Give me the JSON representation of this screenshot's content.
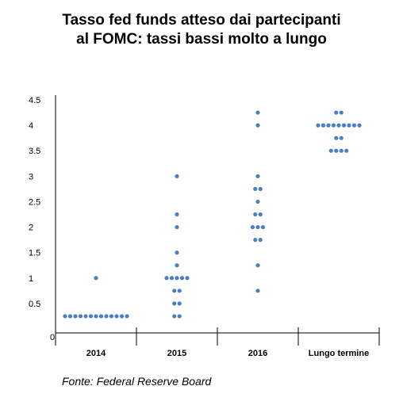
{
  "chart_data": {
    "type": "scatter",
    "title_line1": "Tasso fed funds atteso dai partecipanti",
    "title_line2": "al FOMC: tassi bassi molto a lungo",
    "source": "Fonte: Federal Reserve Board",
    "categories": [
      "2014",
      "2015",
      "2016",
      "Lungo termine"
    ],
    "y_ticks": [
      "0",
      "0.5",
      "1",
      "1.5",
      "2",
      "2.5",
      "3",
      "3.5",
      "4",
      "4.5"
    ],
    "ylim": [
      0,
      4.5
    ],
    "grid": false,
    "dot_color": "#4a7fc6",
    "series": [
      {
        "category": "2014",
        "points": [
          {
            "y": 0.25,
            "count": 13
          },
          {
            "y": 1.0,
            "count": 1
          }
        ]
      },
      {
        "category": "2015",
        "points": [
          {
            "y": 0.25,
            "count": 2
          },
          {
            "y": 0.5,
            "count": 2
          },
          {
            "y": 0.75,
            "count": 2
          },
          {
            "y": 1.0,
            "count": 5
          },
          {
            "y": 1.25,
            "count": 1
          },
          {
            "y": 1.5,
            "count": 1
          },
          {
            "y": 2.0,
            "count": 1
          },
          {
            "y": 2.25,
            "count": 1
          },
          {
            "y": 3.0,
            "count": 1
          }
        ]
      },
      {
        "category": "2016",
        "points": [
          {
            "y": 0.75,
            "count": 1
          },
          {
            "y": 1.25,
            "count": 1
          },
          {
            "y": 1.75,
            "count": 2
          },
          {
            "y": 2.0,
            "count": 3
          },
          {
            "y": 2.25,
            "count": 2
          },
          {
            "y": 2.5,
            "count": 1
          },
          {
            "y": 2.75,
            "count": 2
          },
          {
            "y": 3.0,
            "count": 1
          },
          {
            "y": 4.0,
            "count": 1
          },
          {
            "y": 4.25,
            "count": 1
          }
        ]
      },
      {
        "category": "Lungo termine",
        "points": [
          {
            "y": 3.5,
            "count": 4
          },
          {
            "y": 3.75,
            "count": 2
          },
          {
            "y": 4.0,
            "count": 9
          },
          {
            "y": 4.25,
            "count": 2
          }
        ]
      }
    ]
  }
}
